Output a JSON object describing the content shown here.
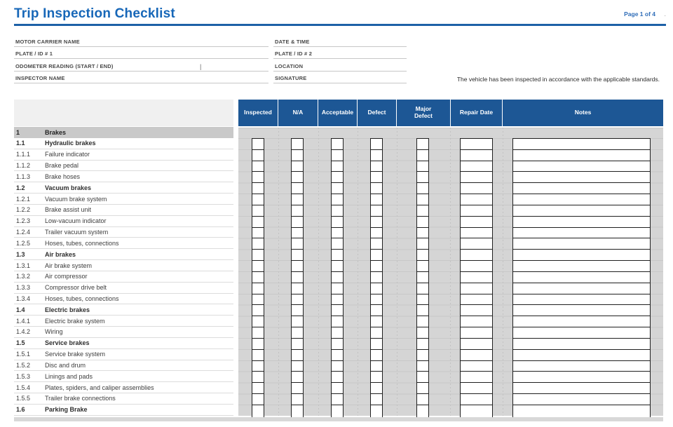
{
  "page": {
    "title": "Trip Inspection Checklist",
    "page_label": "Page 1 of 4",
    "page_dot": "."
  },
  "fields": {
    "left": [
      {
        "label": "MOTOR CARRIER NAME"
      },
      {
        "label": "PLATE / ID # 1"
      },
      {
        "label": "ODOMETER READING (START / END)",
        "divider": "|"
      },
      {
        "label": "INSPECTOR NAME"
      }
    ],
    "right": [
      {
        "label": "DATE & TIME"
      },
      {
        "label": "PLATE / ID # 2"
      },
      {
        "label": "LOCATION"
      },
      {
        "label": "SIGNATURE"
      }
    ]
  },
  "statement": "The vehicle has been inspected in accordance with the applicable standards.",
  "table": {
    "columns": [
      "Inspected",
      "N/A",
      "Acceptable",
      "Defect",
      "Major Defect",
      "Repair Date",
      "Notes"
    ],
    "section": {
      "number": "1",
      "label": "Brakes"
    },
    "rows": [
      {
        "number": "1.1",
        "label": "Hydraulic brakes",
        "bold": true
      },
      {
        "number": "1.1.1",
        "label": "Failure indicator"
      },
      {
        "number": "1.1.2",
        "label": "Brake pedal"
      },
      {
        "number": "1.1.3",
        "label": "Brake hoses"
      },
      {
        "number": "1.2",
        "label": "Vacuum brakes",
        "bold": true
      },
      {
        "number": "1.2.1",
        "label": "Vacuum brake system"
      },
      {
        "number": "1.2.2",
        "label": "Brake assist unit"
      },
      {
        "number": "1.2.3",
        "label": "Low-vacuum indicator"
      },
      {
        "number": "1.2.4",
        "label": "Trailer vacuum system"
      },
      {
        "number": "1.2.5",
        "label": "Hoses, tubes, connections"
      },
      {
        "number": "1.3",
        "label": "Air brakes",
        "bold": true
      },
      {
        "number": "1.3.1",
        "label": "Air brake system"
      },
      {
        "number": "1.3.2",
        "label": "Air compressor"
      },
      {
        "number": "1.3.3",
        "label": "Compressor drive belt"
      },
      {
        "number": "1.3.4",
        "label": "Hoses, tubes, connections"
      },
      {
        "number": "1.4",
        "label": "Electric brakes",
        "bold": true
      },
      {
        "number": "1.4.1",
        "label": "Electric brake system"
      },
      {
        "number": "1.4.2",
        "label": "Wiring"
      },
      {
        "number": "1.5",
        "label": "Service brakes",
        "bold": true
      },
      {
        "number": "1.5.1",
        "label": "Service brake system"
      },
      {
        "number": "1.5.2",
        "label": "Disc and drum"
      },
      {
        "number": "1.5.3",
        "label": "Linings and pads"
      },
      {
        "number": "1.5.4",
        "label": "Plates, spiders, and caliper assemblies"
      },
      {
        "number": "1.5.5",
        "label": "Trailer brake connections"
      },
      {
        "number": "1.6",
        "label": "Parking Brake",
        "bold": true
      }
    ]
  },
  "colors": {
    "title_blue": "#1767b8",
    "rule_blue": "#1d61a7",
    "page_label_blue": "#2f6db8",
    "header_blue": "#1d5795",
    "header_text": "#ffffff",
    "section_band": "#c9c9c9",
    "grid_gray": "#d5d5d5",
    "text_dark": "#3d3d3d",
    "label_gray": "#474747"
  }
}
